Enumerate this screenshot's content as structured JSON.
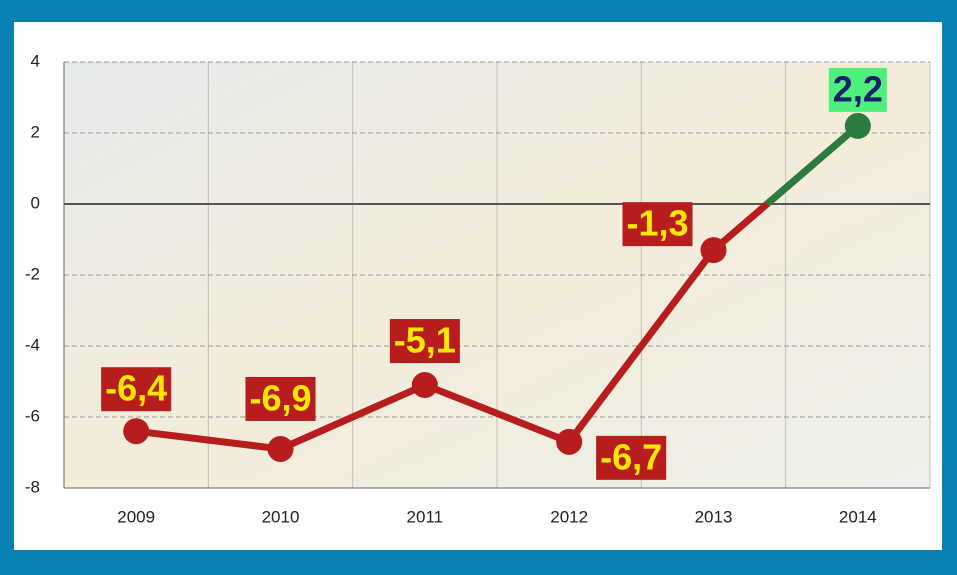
{
  "chart_data": {
    "type": "line",
    "categories": [
      "2009",
      "2010",
      "2011",
      "2012",
      "2013",
      "2014"
    ],
    "values": [
      -6.4,
      -6.9,
      -5.1,
      -6.7,
      -1.3,
      2.2
    ],
    "value_labels": [
      "-6,4",
      "-6,9",
      "-5,1",
      "-6,7",
      "-1,3",
      "2,2"
    ],
    "color": "#b81d1d",
    "positive_color": "#2a7d3c",
    "ylim": [
      -8,
      4
    ],
    "yticks": [
      4,
      2,
      0,
      -2,
      -4,
      -6,
      -8
    ],
    "grid": true
  }
}
